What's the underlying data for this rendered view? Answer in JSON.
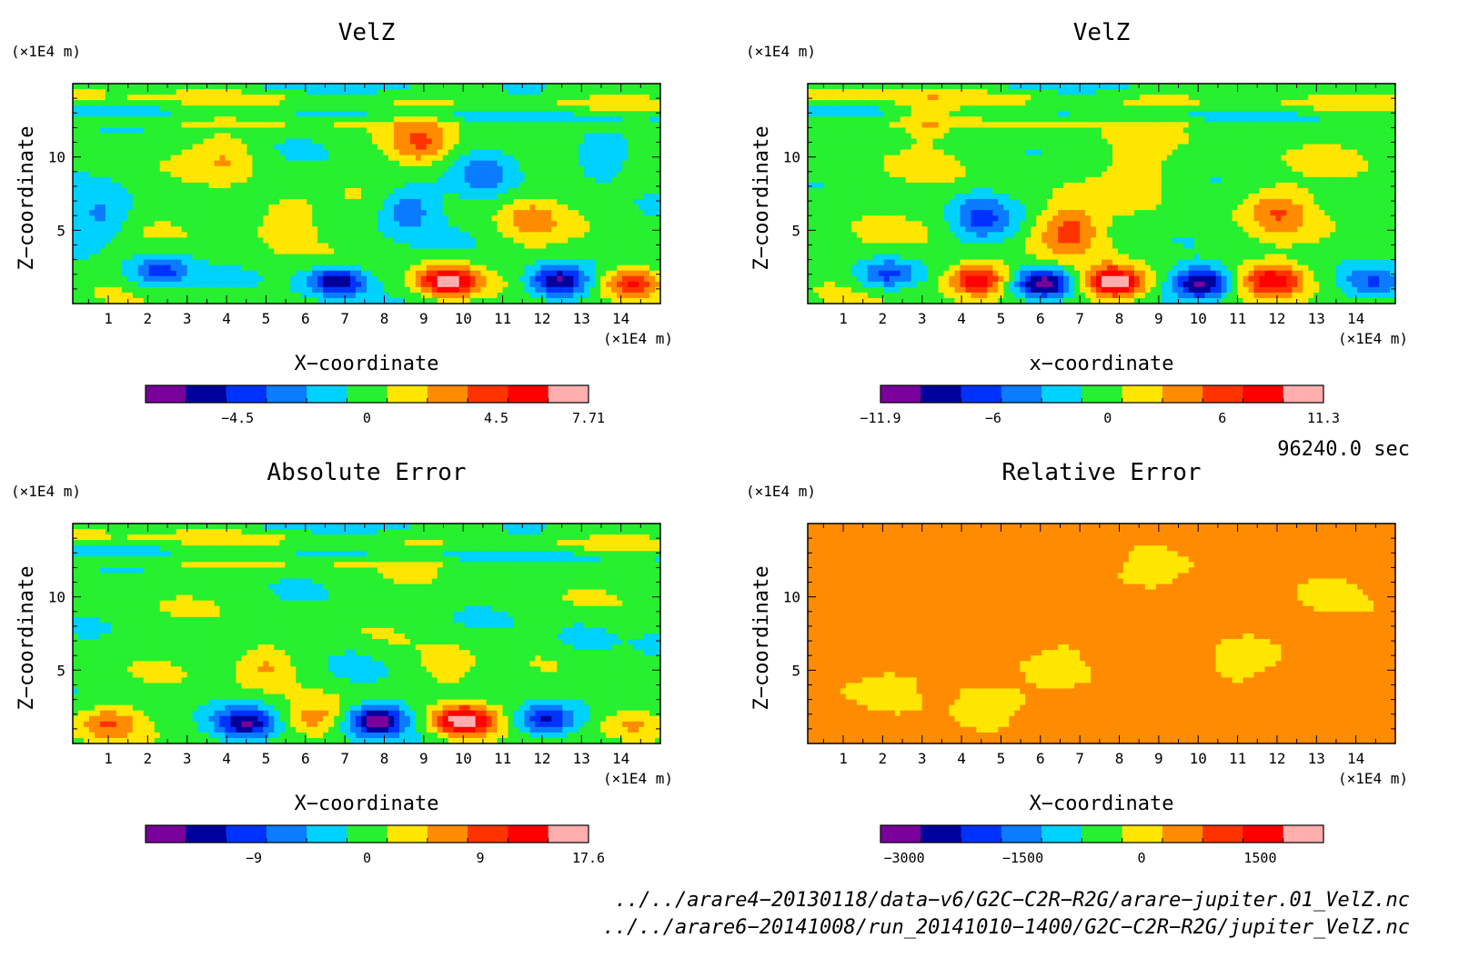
{
  "chart_data": [
    {
      "type": "heatmap",
      "title": "VelZ",
      "xlabel": "X−coordinate",
      "ylabel": "Z−coordinate",
      "x_unit": "(×1E4 m)",
      "y_unit": "(×1E4 m)",
      "xlim": [
        0.1,
        15
      ],
      "ylim": [
        0,
        15
      ],
      "x_ticks": [
        "1",
        "2",
        "3",
        "4",
        "5",
        "6",
        "7",
        "8",
        "9",
        "10",
        "11",
        "12",
        "13",
        "14"
      ],
      "y_ticks": [
        "5",
        "10"
      ],
      "colorbar_ticks": [
        "−4.5",
        "0",
        "4.5",
        "7.71"
      ],
      "colorbar_range": [
        -7.7,
        7.71
      ],
      "features": [
        {
          "x": 9.6,
          "z": 1.5,
          "value": 7.7
        },
        {
          "x": 14.3,
          "z": 1.4,
          "value": 5.6
        },
        {
          "x": 12.4,
          "z": 1.5,
          "value": -7.0
        },
        {
          "x": 6.8,
          "z": 1.5,
          "value": -6.2
        },
        {
          "x": 2.3,
          "z": 2.2,
          "value": -4.2
        },
        {
          "x": 8.6,
          "z": 6.5,
          "value": -3.2
        },
        {
          "x": 8.9,
          "z": 11.0,
          "value": 3.2
        },
        {
          "x": 5.5,
          "z": 5.6,
          "value": 2.8
        },
        {
          "x": 11.7,
          "z": 5.7,
          "value": 2.4
        },
        {
          "x": 13.5,
          "z": 9.9,
          "value": -2.6
        },
        {
          "x": 10.5,
          "z": 9.0,
          "value": -2.2
        },
        {
          "x": 0.8,
          "z": 5.8,
          "value": -2.4
        },
        {
          "x": 4.0,
          "z": 10.0,
          "value": 1.8
        }
      ]
    },
    {
      "type": "heatmap",
      "title": "VelZ",
      "xlabel": "x−coordinate",
      "ylabel": "Z−coordinate",
      "x_unit": "(×1E4 m)",
      "y_unit": "(×1E4 m)",
      "xlim": [
        0.1,
        15
      ],
      "ylim": [
        0,
        15
      ],
      "x_ticks": [
        "1",
        "2",
        "3",
        "4",
        "5",
        "6",
        "7",
        "8",
        "9",
        "10",
        "11",
        "12",
        "13",
        "14"
      ],
      "y_ticks": [
        "5",
        "10"
      ],
      "colorbar_ticks": [
        "−11.9",
        "−6",
        "0",
        "6",
        "11.3"
      ],
      "colorbar_range": [
        -11.9,
        11.3
      ],
      "features": [
        {
          "x": 4.4,
          "z": 1.6,
          "value": 10.0
        },
        {
          "x": 7.9,
          "z": 1.4,
          "value": 11.3
        },
        {
          "x": 11.9,
          "z": 1.6,
          "value": 8.0
        },
        {
          "x": 6.1,
          "z": 1.4,
          "value": -11.0
        },
        {
          "x": 10.1,
          "z": 1.4,
          "value": -10.8
        },
        {
          "x": 2.1,
          "z": 2.0,
          "value": -6.5
        },
        {
          "x": 14.4,
          "z": 1.4,
          "value": -5.0
        },
        {
          "x": 6.7,
          "z": 5.0,
          "value": 6.0
        },
        {
          "x": 12.0,
          "z": 6.3,
          "value": 4.2
        },
        {
          "x": 4.5,
          "z": 5.8,
          "value": -5.5
        },
        {
          "x": 8.5,
          "z": 9.0,
          "value": 2.2
        },
        {
          "x": 3.0,
          "z": 12.5,
          "value": 1.8
        }
      ]
    },
    {
      "type": "heatmap",
      "title": "Absolute Error",
      "xlabel": "X−coordinate",
      "ylabel": "Z−coordinate",
      "x_unit": "(×1E4 m)",
      "y_unit": "(×1E4 m)",
      "xlim": [
        0.1,
        15
      ],
      "ylim": [
        0,
        15
      ],
      "x_ticks": [
        "1",
        "2",
        "3",
        "4",
        "5",
        "6",
        "7",
        "8",
        "9",
        "10",
        "11",
        "12",
        "13",
        "14"
      ],
      "y_ticks": [
        "5",
        "10"
      ],
      "colorbar_ticks": [
        "−9",
        "0",
        "9",
        "17.6"
      ],
      "colorbar_range": [
        -17.6,
        17.6
      ],
      "features": [
        {
          "x": 10.0,
          "z": 1.5,
          "value": 17.6
        },
        {
          "x": 7.8,
          "z": 1.6,
          "value": -17.0
        },
        {
          "x": 4.5,
          "z": 1.4,
          "value": -13.0
        },
        {
          "x": 12.1,
          "z": 1.6,
          "value": -13.0
        },
        {
          "x": 1.0,
          "z": 1.4,
          "value": 7.0
        },
        {
          "x": 6.2,
          "z": 1.7,
          "value": 6.0
        },
        {
          "x": 14.3,
          "z": 1.4,
          "value": 7.0
        },
        {
          "x": 5.0,
          "z": 5.4,
          "value": 6.5
        },
        {
          "x": 9.6,
          "z": 5.0,
          "value": 5.0
        },
        {
          "x": 7.3,
          "z": 5.2,
          "value": -3.5
        },
        {
          "x": 13.0,
          "z": 7.0,
          "value": -3.0
        }
      ]
    },
    {
      "type": "heatmap",
      "title": "Relative Error",
      "xlabel": "X−coordinate",
      "ylabel": "Z−coordinate",
      "x_unit": "(×1E4 m)",
      "y_unit": "(×1E4 m)",
      "xlim": [
        0.1,
        15
      ],
      "ylim": [
        0,
        15
      ],
      "x_ticks": [
        "1",
        "2",
        "3",
        "4",
        "5",
        "6",
        "7",
        "8",
        "9",
        "10",
        "11",
        "12",
        "13",
        "14"
      ],
      "y_ticks": [
        "5",
        "10"
      ],
      "colorbar_ticks": [
        "−3000",
        "−1500",
        "0",
        "1500"
      ],
      "colorbar_range": [
        -3300,
        2300
      ],
      "background_value": 500,
      "features": [
        {
          "x": 2.0,
          "z": 3.5,
          "value": -120
        },
        {
          "x": 6.5,
          "z": 5.0,
          "value": -150
        },
        {
          "x": 11.2,
          "z": 6.0,
          "value": -100
        },
        {
          "x": 4.5,
          "z": 2.5,
          "value": -100
        },
        {
          "x": 9.0,
          "z": 12.0,
          "value": -80
        },
        {
          "x": 13.5,
          "z": 10.0,
          "value": -90
        }
      ]
    }
  ],
  "colors": {
    "palette": [
      "#7a009c",
      "#00009c",
      "#0032ff",
      "#0b7bff",
      "#00d2ff",
      "#26f02f",
      "#ffe600",
      "#ff8c00",
      "#ff3300",
      "#ff0000",
      "#ffaeae"
    ]
  },
  "time_label": "96240.0 sec",
  "footer_lines": [
    "../../arare4−20130118/data−v6/G2C−C2R−R2G/arare−jupiter.01_VelZ.nc",
    "../../arare6−20141008/run_20141010−1400/G2C−C2R−R2G/jupiter_VelZ.nc"
  ]
}
